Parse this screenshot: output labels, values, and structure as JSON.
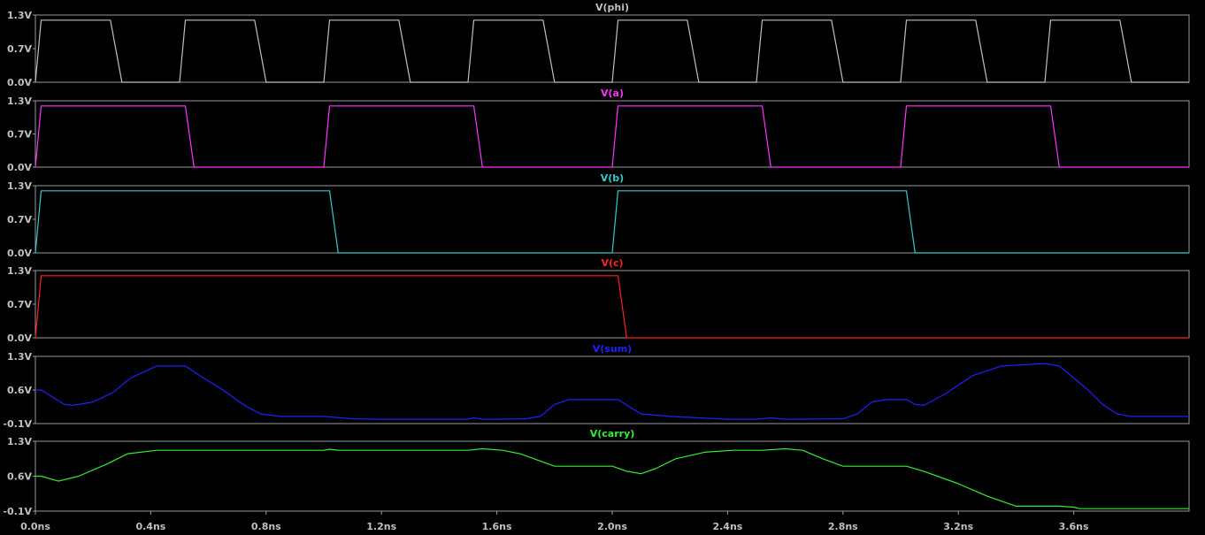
{
  "chart_data": [
    {
      "type": "line",
      "title": "V(phi)",
      "color": "#c0c0c0",
      "y_ticks": [
        "1.3V",
        "0.7V",
        "0.0V"
      ],
      "ylim": [
        0.0,
        1.3
      ],
      "x": [
        0.0,
        0.02,
        0.26,
        0.3,
        0.5,
        0.52,
        0.76,
        0.8,
        1.0,
        1.02,
        1.26,
        1.3,
        1.5,
        1.52,
        1.76,
        1.8,
        2.0,
        2.02,
        2.26,
        2.3,
        2.5,
        2.52,
        2.76,
        2.8,
        3.0,
        3.02,
        3.26,
        3.3,
        3.5,
        3.52,
        3.76,
        3.8,
        4.0
      ],
      "y": [
        0.0,
        1.2,
        1.2,
        0.0,
        0.0,
        1.2,
        1.2,
        0.0,
        0.0,
        1.2,
        1.2,
        0.0,
        0.0,
        1.2,
        1.2,
        0.0,
        0.0,
        1.2,
        1.2,
        0.0,
        0.0,
        1.2,
        1.2,
        0.0,
        0.0,
        1.2,
        1.2,
        0.0,
        0.0,
        1.2,
        1.2,
        0.0,
        0.0
      ]
    },
    {
      "type": "line",
      "title": "V(a)",
      "color": "#ff33ff",
      "y_ticks": [
        "1.3V",
        "0.7V",
        "0.0V"
      ],
      "ylim": [
        0.0,
        1.3
      ],
      "x": [
        0.0,
        0.02,
        0.52,
        0.55,
        1.0,
        1.02,
        1.52,
        1.55,
        2.0,
        2.02,
        2.52,
        2.55,
        3.0,
        3.02,
        3.52,
        3.55,
        4.0
      ],
      "y": [
        0.0,
        1.2,
        1.2,
        0.0,
        0.0,
        1.2,
        1.2,
        0.0,
        0.0,
        1.2,
        1.2,
        0.0,
        0.0,
        1.2,
        1.2,
        0.0,
        0.0
      ]
    },
    {
      "type": "line",
      "title": "V(b)",
      "color": "#33cccc",
      "y_ticks": [
        "1.3V",
        "0.7V",
        "0.0V"
      ],
      "ylim": [
        0.0,
        1.3
      ],
      "x": [
        0.0,
        0.02,
        1.02,
        1.05,
        2.0,
        2.02,
        3.02,
        3.05,
        4.0
      ],
      "y": [
        0.0,
        1.2,
        1.2,
        0.0,
        0.0,
        1.2,
        1.2,
        0.0,
        0.0
      ]
    },
    {
      "type": "line",
      "title": "V(c)",
      "color": "#ff2020",
      "y_ticks": [
        "1.3V",
        "0.7V",
        "0.0V"
      ],
      "ylim": [
        0.0,
        1.3
      ],
      "x": [
        0.0,
        0.02,
        2.02,
        2.05,
        4.0
      ],
      "y": [
        0.0,
        1.2,
        1.2,
        0.0,
        0.0
      ]
    },
    {
      "type": "line",
      "title": "V(sum)",
      "color": "#2020ff",
      "y_ticks": [
        "1.3V",
        "0.6V",
        "-0.1V"
      ],
      "ylim": [
        -0.1,
        1.3
      ],
      "x": [
        0.0,
        0.02,
        0.06,
        0.1,
        0.13,
        0.2,
        0.27,
        0.33,
        0.42,
        0.52,
        0.57,
        0.65,
        0.72,
        0.78,
        0.85,
        1.0,
        1.1,
        1.2,
        1.5,
        1.52,
        1.55,
        1.58,
        1.7,
        1.75,
        1.8,
        1.85,
        2.02,
        2.06,
        2.1,
        2.2,
        2.4,
        2.5,
        2.55,
        2.6,
        2.8,
        2.85,
        2.9,
        2.95,
        3.02,
        3.05,
        3.08,
        3.15,
        3.25,
        3.35,
        3.5,
        3.55,
        3.65,
        3.7,
        3.75,
        3.8,
        4.0
      ],
      "y": [
        0.6,
        0.6,
        0.45,
        0.3,
        0.28,
        0.35,
        0.55,
        0.85,
        1.1,
        1.1,
        0.9,
        0.6,
        0.3,
        0.1,
        0.05,
        0.05,
        0.0,
        -0.01,
        -0.01,
        0.02,
        -0.01,
        -0.01,
        0.0,
        0.05,
        0.3,
        0.4,
        0.4,
        0.25,
        0.1,
        0.05,
        -0.01,
        -0.01,
        0.02,
        -0.01,
        0.0,
        0.1,
        0.35,
        0.4,
        0.4,
        0.3,
        0.28,
        0.5,
        0.9,
        1.1,
        1.15,
        1.1,
        0.6,
        0.3,
        0.1,
        0.05,
        0.05
      ]
    },
    {
      "type": "line",
      "title": "V(carry)",
      "color": "#33ee33",
      "y_ticks": [
        "1.3V",
        "0.6V",
        "-0.1V"
      ],
      "ylim": [
        -0.1,
        1.3
      ],
      "x": [
        0.0,
        0.02,
        0.05,
        0.08,
        0.15,
        0.25,
        0.32,
        0.42,
        1.0,
        1.02,
        1.05,
        1.5,
        1.55,
        1.62,
        1.68,
        1.8,
        2.0,
        2.05,
        2.1,
        2.15,
        2.22,
        2.32,
        2.42,
        2.52,
        2.6,
        2.66,
        2.73,
        2.8,
        2.85,
        3.02,
        3.08,
        3.2,
        3.3,
        3.4,
        3.5,
        3.55,
        3.6,
        3.62,
        3.68,
        4.0
      ],
      "y": [
        0.6,
        0.6,
        0.55,
        0.5,
        0.6,
        0.85,
        1.05,
        1.12,
        1.12,
        1.14,
        1.12,
        1.12,
        1.15,
        1.12,
        1.05,
        0.8,
        0.8,
        0.7,
        0.65,
        0.75,
        0.95,
        1.08,
        1.12,
        1.12,
        1.15,
        1.12,
        0.95,
        0.8,
        0.8,
        0.8,
        0.7,
        0.45,
        0.2,
        0.0,
        0.0,
        0.0,
        -0.02,
        -0.05,
        -0.05,
        -0.05
      ]
    }
  ],
  "x_axis": {
    "xlim": [
      0.0,
      4.0
    ],
    "ticks": [
      "0.0ns",
      "0.4ns",
      "0.8ns",
      "1.2ns",
      "1.6ns",
      "2.0ns",
      "2.4ns",
      "2.8ns",
      "3.2ns",
      "3.6ns"
    ],
    "tick_values": [
      0.0,
      0.4,
      0.8,
      1.2,
      1.6,
      2.0,
      2.4,
      2.8,
      3.2,
      3.6
    ]
  }
}
